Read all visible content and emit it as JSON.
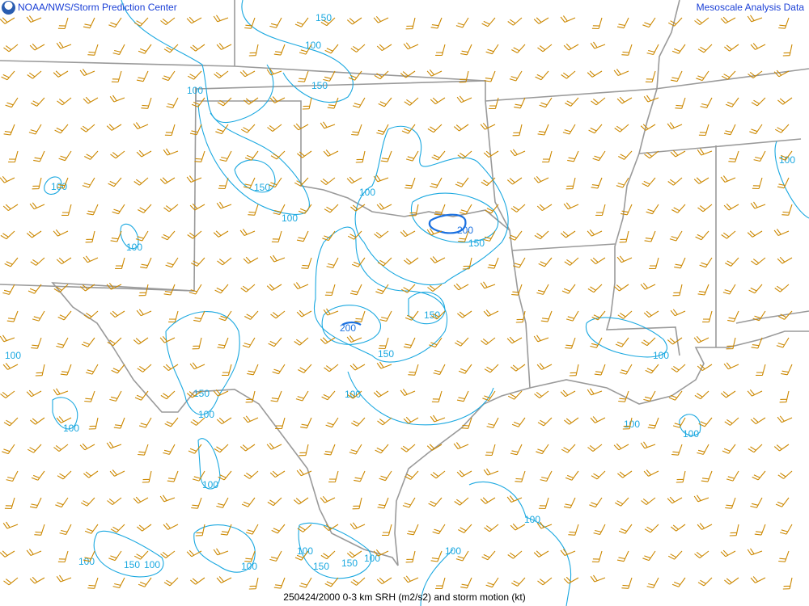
{
  "header": {
    "left_title": "NOAA/NWS/Storm Prediction Center",
    "right_title": "Mesoscale Analysis Data",
    "logo": "noaa-logo"
  },
  "caption": "250424/2000 0-3 km SRH (m2/s2) and storm motion (kt)",
  "colors": {
    "contour": "#1aa8e0",
    "contour_strong": "#1a70e0",
    "barb": "#cc8800",
    "border": "#9a9a9a",
    "header_text": "#1a3fd6"
  },
  "contour_labels": [
    "150",
    "100",
    "150",
    "100",
    "100",
    "150",
    "100",
    "100",
    "100",
    "200",
    "150",
    "150",
    "200",
    "150",
    "100",
    "150",
    "100",
    "100",
    "100",
    "100",
    "100",
    "100",
    "100",
    "100",
    "100",
    "100",
    "100",
    "150",
    "100",
    "100",
    "100",
    "150",
    "150",
    "100"
  ]
}
